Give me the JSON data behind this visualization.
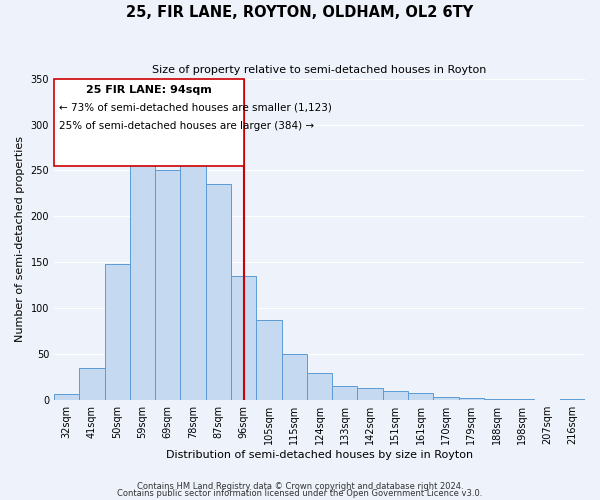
{
  "title": "25, FIR LANE, ROYTON, OLDHAM, OL2 6TY",
  "subtitle": "Size of property relative to semi-detached houses in Royton",
  "xlabel": "Distribution of semi-detached houses by size in Royton",
  "ylabel": "Number of semi-detached properties",
  "bar_labels": [
    "32sqm",
    "41sqm",
    "50sqm",
    "59sqm",
    "69sqm",
    "78sqm",
    "87sqm",
    "96sqm",
    "105sqm",
    "115sqm",
    "124sqm",
    "133sqm",
    "142sqm",
    "151sqm",
    "161sqm",
    "170sqm",
    "179sqm",
    "188sqm",
    "198sqm",
    "207sqm",
    "216sqm"
  ],
  "bar_values": [
    7,
    35,
    148,
    262,
    250,
    263,
    235,
    135,
    87,
    50,
    30,
    15,
    13,
    10,
    8,
    4,
    2,
    1,
    1,
    0,
    1
  ],
  "bar_color": "#c5d9f1",
  "bar_edge_color": "#5b9bd5",
  "property_line_x": 7.0,
  "property_line_label": "25 FIR LANE: 94sqm",
  "annotation_smaller": "← 73% of semi-detached houses are smaller (1,123)",
  "annotation_larger": "25% of semi-detached houses are larger (384) →",
  "line_color": "#cc0000",
  "ylim": [
    0,
    350
  ],
  "yticks": [
    0,
    50,
    100,
    150,
    200,
    250,
    300,
    350
  ],
  "footer1": "Contains HM Land Registry data © Crown copyright and database right 2024.",
  "footer2": "Contains public sector information licensed under the Open Government Licence v3.0.",
  "background_color": "#eef2fb"
}
